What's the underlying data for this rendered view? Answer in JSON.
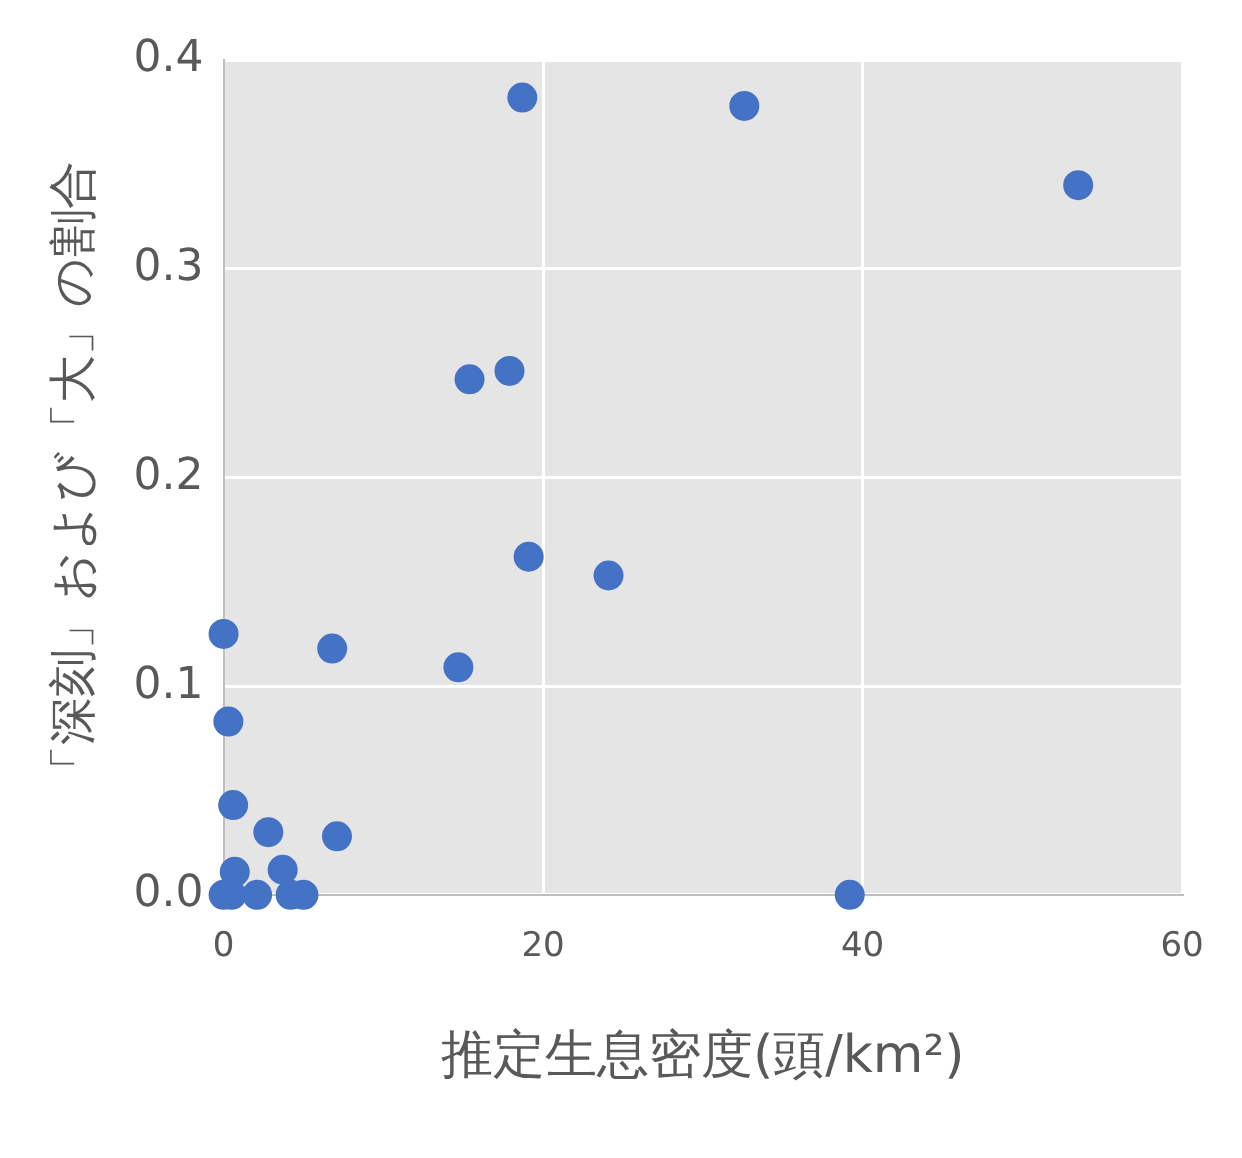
{
  "chart_data": {
    "type": "scatter",
    "xlabel": "推定生息密度(頭/km²)",
    "ylabel": "「深刻」および「大」の割合",
    "series": [
      {
        "color": "#4472c4",
        "x": [
          0,
          0.3,
          0.6,
          2.8,
          7.1,
          6.8,
          14.7,
          15.4,
          17.9,
          18.7,
          19.1,
          24.1,
          32.6,
          53.5,
          39.2,
          0.7,
          3.7,
          0,
          0.5,
          2.1,
          4.2,
          5.0
        ],
        "values": [
          0.125,
          0.083,
          0.043,
          0.03,
          0.028,
          0.118,
          0.109,
          0.247,
          0.251,
          0.382,
          0.162,
          0.153,
          0.378,
          0.34,
          0,
          0.011,
          0.012,
          0,
          0,
          0,
          0,
          0
        ]
      }
    ],
    "xlim": [
      0,
      60
    ],
    "xticks": [
      0,
      20,
      40,
      60
    ],
    "ylim": [
      0,
      0.4
    ],
    "yticks": [
      {
        "value": 0,
        "label": "0.0"
      },
      {
        "value": 0.1,
        "label": "0.1"
      },
      {
        "value": 0.2,
        "label": "0.2"
      },
      {
        "value": 0.3,
        "label": "0.3"
      },
      {
        "value": 0.4,
        "label": "0.4"
      }
    ],
    "grid": true,
    "marker": "circle",
    "legend": false
  }
}
